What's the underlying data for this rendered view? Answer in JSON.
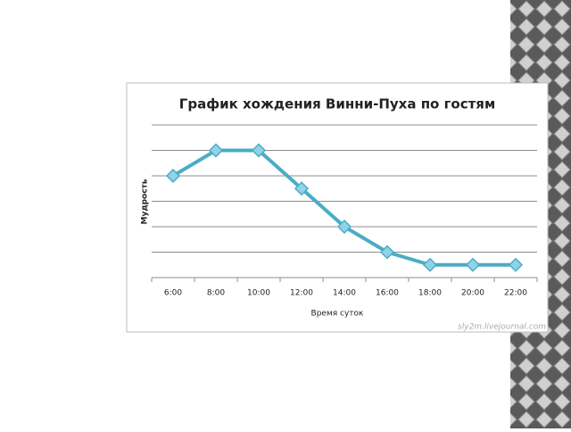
{
  "chart_data": {
    "type": "line",
    "title": "График хождения Винни-Пуха  по гостям",
    "x_label": "Время суток",
    "y_label": "Мудрость",
    "watermark": "sly2m.livejournal.com",
    "categories": [
      "6:00",
      "8:00",
      "10:00",
      "12:00",
      "14:00",
      "16:00",
      "18:00",
      "20:00",
      "22:00"
    ],
    "values": [
      4,
      5,
      5,
      3.5,
      2,
      1,
      0.5,
      0.5,
      0.5
    ],
    "color": "#4bacc6",
    "ylim": [
      0,
      6
    ],
    "yticks": [
      0,
      1,
      2,
      3,
      4,
      5,
      6
    ],
    "grid": true
  }
}
